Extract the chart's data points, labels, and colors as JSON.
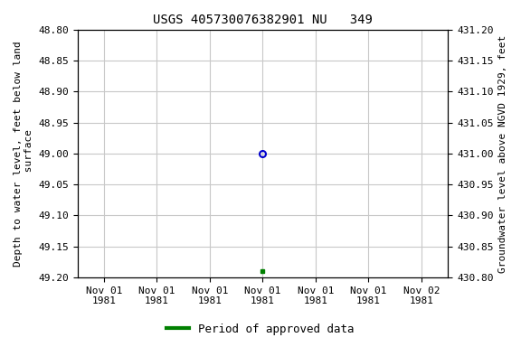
{
  "title": "USGS 405730076382901 NU   349",
  "ylabel_left": "Depth to water level, feet below land\n surface",
  "ylabel_right": "Groundwater level above NGVD 1929, feet",
  "ylim_left": [
    48.8,
    49.2
  ],
  "ylim_right": [
    430.8,
    431.2
  ],
  "yticks_left": [
    48.8,
    48.85,
    48.9,
    48.95,
    49.0,
    49.05,
    49.1,
    49.15,
    49.2
  ],
  "yticks_right": [
    430.8,
    430.85,
    430.9,
    430.95,
    431.0,
    431.05,
    431.1,
    431.15,
    431.2
  ],
  "xtick_positions": [
    0,
    1,
    2,
    3,
    4,
    5,
    6
  ],
  "xtick_labels": [
    "Nov 01\n1981",
    "Nov 01\n1981",
    "Nov 01\n1981",
    "Nov 01\n1981",
    "Nov 01\n1981",
    "Nov 01\n1981",
    "Nov 02\n1981"
  ],
  "xlim": [
    -0.5,
    6.5
  ],
  "data_open": {
    "x": 3,
    "depth": 49.0,
    "color": "#0000cc",
    "marker": "o",
    "markersize": 5,
    "markerfacecolor": "none",
    "markeredgewidth": 1.5
  },
  "data_approved": {
    "x": 3,
    "depth": 49.19,
    "color": "#008000",
    "marker": "s",
    "markersize": 3.5
  },
  "legend_label": "Period of approved data",
  "legend_color": "#008000",
  "background_color": "#ffffff",
  "grid_color": "#c8c8c8",
  "title_fontsize": 10,
  "label_fontsize": 8,
  "tick_fontsize": 8,
  "legend_fontsize": 9
}
